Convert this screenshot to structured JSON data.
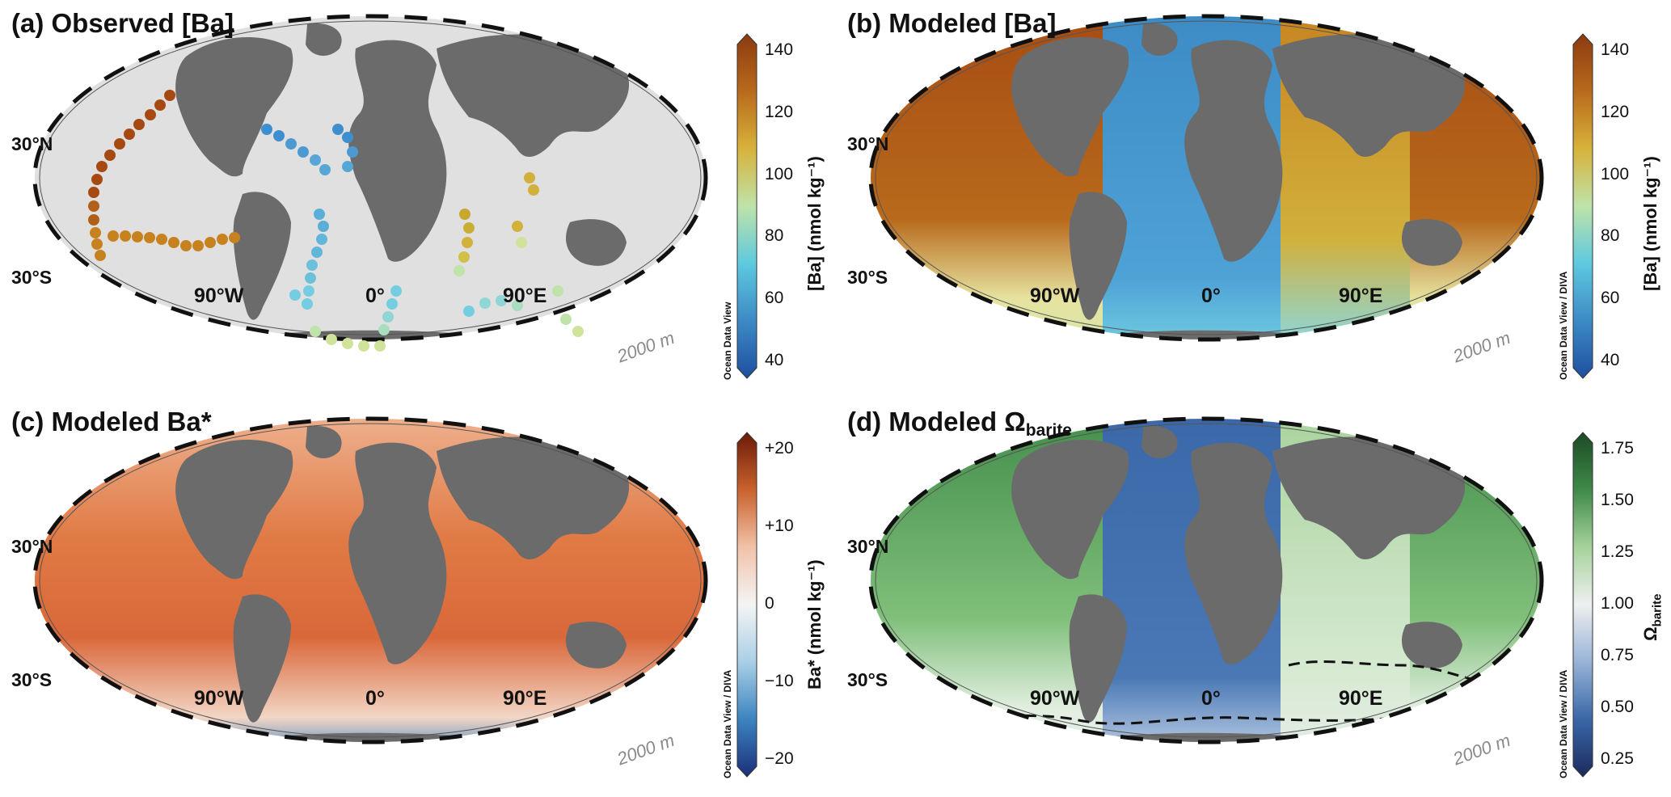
{
  "panels": [
    {
      "id": "a",
      "title": "(a) Observed [Ba]",
      "title_sub": "",
      "credit": "Ocean Data View",
      "cb_label": "[Ba] (nmol kg⁻¹)",
      "cb_label_sub": "",
      "cb_ticks": [
        "140",
        "120",
        "100",
        "80",
        "60",
        "40"
      ],
      "cb_colors": [
        "#8b3a0f",
        "#b86a1c",
        "#d7b23b",
        "#bfe3a9",
        "#5ec9df",
        "#3d8ac5",
        "#1d4fa0"
      ],
      "lat_labels": [
        "30°N",
        "30°S"
      ],
      "lon_labels": [
        "90°W",
        "0°",
        "90°E"
      ],
      "depth_label": "2000 m",
      "ocean_fill": "#e3e3e3"
    },
    {
      "id": "b",
      "title": "(b) Modeled [Ba]",
      "title_sub": "",
      "credit": "Ocean Data View / DIVA",
      "cb_label": "[Ba] (nmol kg⁻¹)",
      "cb_label_sub": "",
      "cb_ticks": [
        "140",
        "120",
        "100",
        "80",
        "60",
        "40"
      ],
      "cb_colors": [
        "#8b3a0f",
        "#b86a1c",
        "#d7b23b",
        "#bfe3a9",
        "#5ec9df",
        "#3d8ac5",
        "#1d4fa0"
      ],
      "lat_labels": [
        "30°N",
        "30°S"
      ],
      "lon_labels": [
        "90°W",
        "0°",
        "90°E"
      ],
      "depth_label": "2000 m",
      "ocean_fill": "modeled-ba"
    },
    {
      "id": "c",
      "title": "(c) Modeled Ba*",
      "title_sub": "",
      "credit": "Ocean Data View / DIVA",
      "cb_label": "Ba* (nmol kg⁻¹)",
      "cb_label_sub": "",
      "cb_ticks": [
        "+20",
        "+10",
        "0",
        "−10",
        "−20"
      ],
      "cb_colors": [
        "#6b1a08",
        "#c9622d",
        "#f2c2a8",
        "#f4f4f4",
        "#a9cfe6",
        "#3c84c0",
        "#1b2f7a"
      ],
      "lat_labels": [
        "30°N",
        "30°S"
      ],
      "lon_labels": [
        "90°W",
        "0°",
        "90°E"
      ],
      "depth_label": "2000 m",
      "ocean_fill": "modeled-bastar"
    },
    {
      "id": "d",
      "title": "(d) Modeled Ω",
      "title_sub": "barite",
      "credit": "Ocean Data View / DIVA",
      "cb_label": "Ω",
      "cb_label_sub": "barite",
      "cb_ticks": [
        "1.75",
        "1.50",
        "1.25",
        "1.00",
        "0.75",
        "0.50",
        "0.25"
      ],
      "cb_colors": [
        "#1c4a26",
        "#3f8a48",
        "#a6d29b",
        "#eef0f0",
        "#97b3d6",
        "#3a67a8",
        "#1c2a5c"
      ],
      "lat_labels": [
        "30°N",
        "30°S"
      ],
      "lon_labels": [
        "90°W",
        "0°",
        "90°E"
      ],
      "depth_label": "2000 m",
      "ocean_fill": "modeled-omega"
    }
  ],
  "observations": {
    "colors": {
      "high": "#a64a12",
      "mid_high": "#c7821f",
      "mid": "#d1b03c",
      "low_mid": "#cfe39a",
      "low": "#74cde0",
      "lowest": "#3f8fcf"
    }
  }
}
